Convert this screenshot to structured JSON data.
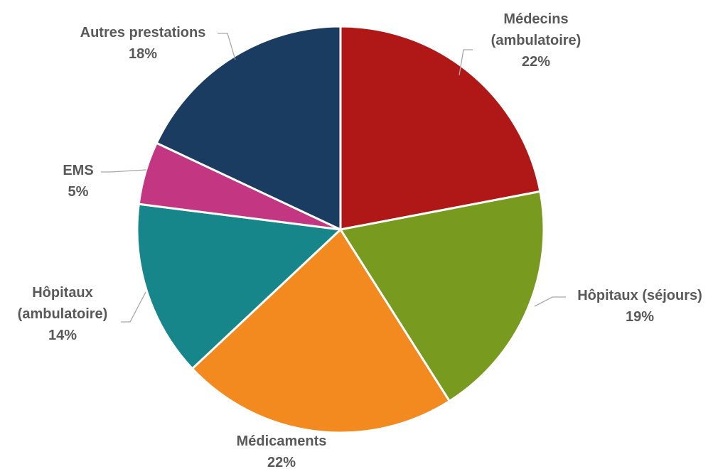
{
  "chart_data": {
    "type": "pie",
    "slices": [
      {
        "label": [
          "Médecins",
          "(ambulatoire)"
        ],
        "value": 22,
        "value_label": "22%",
        "color": "#b01817"
      },
      {
        "label": [
          "Hôpitaux (séjours)"
        ],
        "value": 19,
        "value_label": "19%",
        "color": "#789b1f"
      },
      {
        "label": [
          "Médicaments"
        ],
        "value": 22,
        "value_label": "22%",
        "color": "#f28a20"
      },
      {
        "label": [
          "Hôpitaux",
          "(ambulatoire)"
        ],
        "value": 14,
        "value_label": "14%",
        "color": "#16868a"
      },
      {
        "label": [
          "EMS"
        ],
        "value": 5,
        "value_label": "5%",
        "color": "#c33682"
      },
      {
        "label": [
          "Autres prestations"
        ],
        "value": 18,
        "value_label": "18%",
        "color": "#1b3c61"
      }
    ],
    "start_angle_deg": 0,
    "direction": "clockwise",
    "legend": "none",
    "data_labels": "outside-with-leader-lines"
  }
}
